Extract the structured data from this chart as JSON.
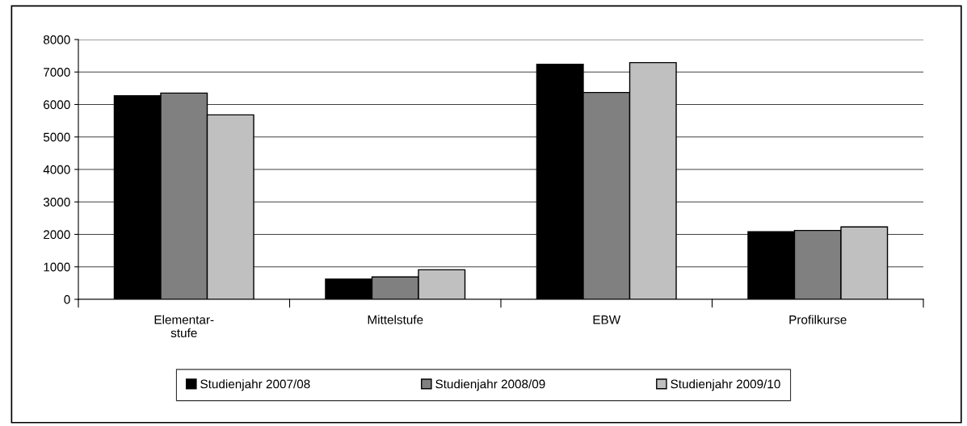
{
  "chart_data": {
    "type": "bar",
    "categories": [
      "Elementar-\nstufe",
      "Mittelstufe",
      "EBW",
      "Profilkurse"
    ],
    "series": [
      {
        "name": "Studienjahr 2007/08",
        "color": "#000000",
        "values": [
          6270,
          620,
          7240,
          2080
        ]
      },
      {
        "name": "Studienjahr 2008/09",
        "color": "#808080",
        "values": [
          6350,
          690,
          6370,
          2120
        ]
      },
      {
        "name": "Studienjahr 2009/10",
        "color": "#c0c0c0",
        "values": [
          5680,
          910,
          7290,
          2230
        ]
      }
    ],
    "ylim": [
      0,
      8000
    ],
    "yticks": [
      0,
      1000,
      2000,
      3000,
      4000,
      5000,
      6000,
      7000,
      8000
    ],
    "grid": "y",
    "legend": "bottom"
  }
}
